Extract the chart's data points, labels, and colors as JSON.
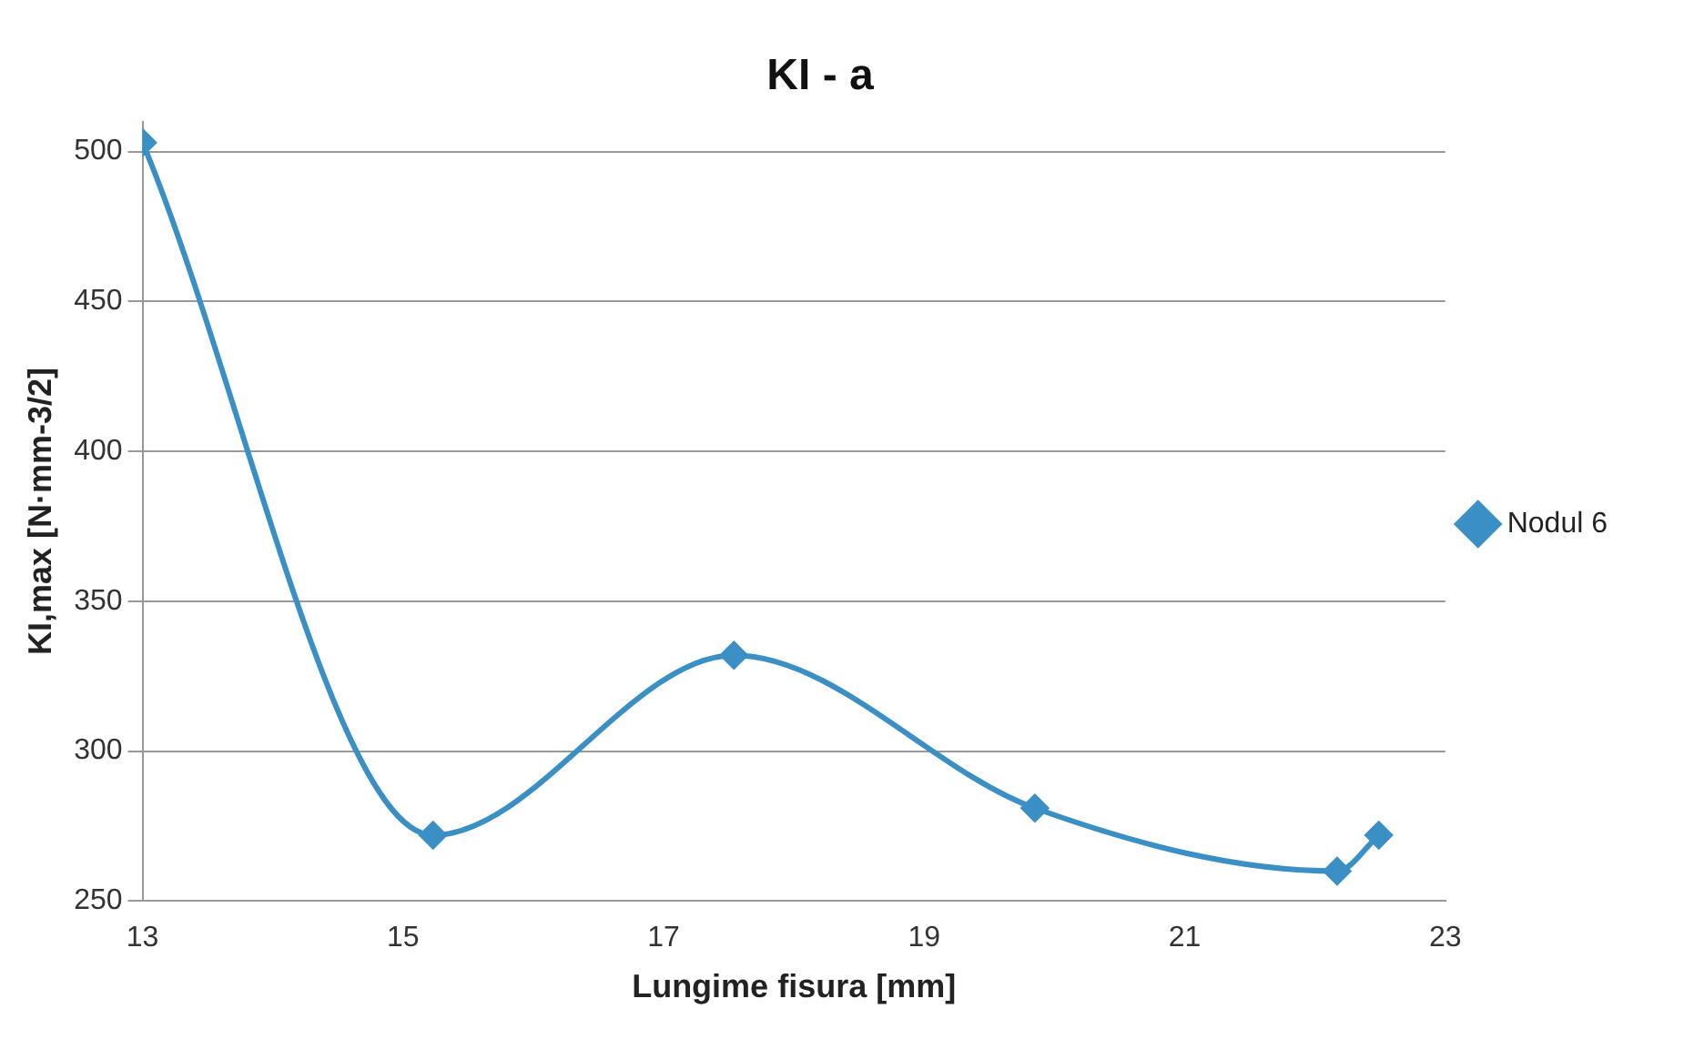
{
  "chart_data": {
    "type": "line",
    "title": "KI - a",
    "xlabel": "Lungime fisura [mm]",
    "ylabel": "KI,max [N·mm-3/2]",
    "x": [
      13,
      15.23,
      17.54,
      19.85,
      22.17,
      22.49
    ],
    "series": [
      {
        "name": "Nodul 6",
        "color": "#3a8fc4",
        "values": [
          503,
          272,
          332,
          281,
          260,
          272
        ]
      }
    ],
    "xlim": [
      13,
      23
    ],
    "xticks": [
      13,
      15,
      17,
      19,
      21,
      23
    ],
    "ylim": [
      250,
      510
    ],
    "yticks": [
      250,
      300,
      350,
      400,
      450,
      500
    ],
    "grid": "y",
    "legend": "right",
    "marker": "diamond",
    "line_style": "solid"
  }
}
